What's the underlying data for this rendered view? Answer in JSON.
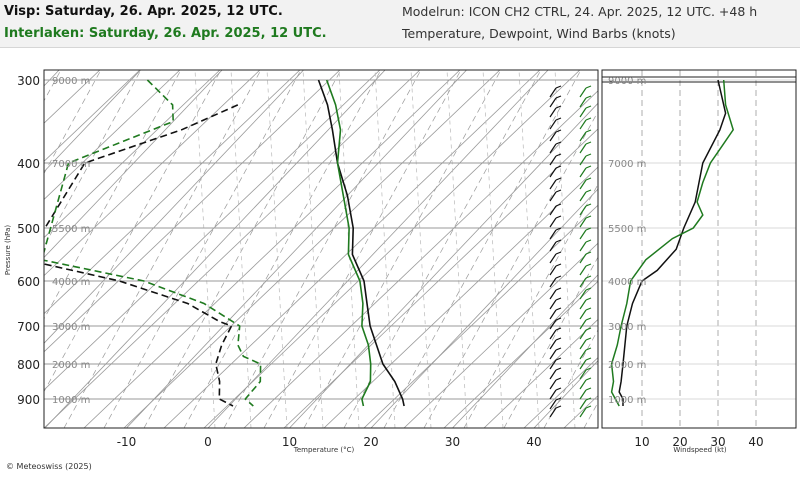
{
  "header": {
    "title_primary": "Visp: Saturday, 26. Apr. 2025, 12 UTC.",
    "title_secondary": "Interlaken: Saturday, 26. Apr. 2025, 12 UTC.",
    "model_run": "Modelrun: ICON CH2 CTRL, 24. Apr. 2025, 12 UTC. +48 h",
    "description": "Temperature, Dewpoint, Wind Barbs (knots)"
  },
  "footer": {
    "copyright": "© Meteoswiss (2025)"
  },
  "colors": {
    "primary": "#111111",
    "secondary": "#1f7a1f",
    "grid": "#9a9a9a",
    "header_bg": "#f2f2f2"
  },
  "chart_data": [
    {
      "type": "line",
      "subtype": "skew-t",
      "xlabel": "Temperature (°C)",
      "ylabel": "Pressure (hPa)",
      "xticks": [
        -10,
        0,
        10,
        20,
        30,
        40
      ],
      "yticks": [
        300,
        400,
        500,
        600,
        700,
        800,
        900
      ],
      "height_labels": [
        "9000 m",
        "7000 m",
        "5500 m",
        "4000 m",
        "3000 m",
        "2000 m",
        "1000 m"
      ],
      "series": [
        {
          "name": "Visp: Saturday, 26. Apr. 2025, 12 UTC.",
          "color": "#111111",
          "temperature": [
            [
              300,
              -27
            ],
            [
              330,
              -23
            ],
            [
              360,
              -19.5
            ],
            [
              400,
              -15
            ],
            [
              450,
              -10
            ],
            [
              500,
              -5.5
            ],
            [
              550,
              -2.5
            ],
            [
              600,
              2
            ],
            [
              650,
              5
            ],
            [
              700,
              8
            ],
            [
              750,
              11
            ],
            [
              800,
              14
            ],
            [
              850,
              17.5
            ],
            [
              900,
              20.5
            ],
            [
              920,
              21.5
            ]
          ],
          "dewpoint": [
            [
              330,
              -34
            ],
            [
              360,
              -38
            ],
            [
              400,
              -46
            ],
            [
              560,
              -42
            ],
            [
              600,
              -28
            ],
            [
              650,
              -17
            ],
            [
              690,
              -11
            ],
            [
              700,
              -9
            ],
            [
              750,
              -8
            ],
            [
              800,
              -6.5
            ],
            [
              850,
              -4
            ],
            [
              900,
              -2
            ],
            [
              920,
              0.5
            ]
          ]
        },
        {
          "name": "Interlaken: Saturday, 26. Apr. 2025, 12 UTC.",
          "color": "#1f7a1f",
          "temperature": [
            [
              300,
              -26
            ],
            [
              330,
              -22
            ],
            [
              360,
              -18.5
            ],
            [
              400,
              -15
            ],
            [
              450,
              -10.5
            ],
            [
              500,
              -6
            ],
            [
              550,
              -3
            ],
            [
              600,
              1.5
            ],
            [
              650,
              4.5
            ],
            [
              700,
              7
            ],
            [
              750,
              10
            ],
            [
              800,
              12.5
            ],
            [
              850,
              14.5
            ],
            [
              900,
              15.5
            ],
            [
              920,
              16.5
            ]
          ],
          "dewpoint": [
            [
              300,
              -48
            ],
            [
              330,
              -42
            ],
            [
              350,
              -40
            ],
            [
              400,
              -48
            ],
            [
              560,
              -40
            ],
            [
              600,
              -25
            ],
            [
              650,
              -15
            ],
            [
              700,
              -8
            ],
            [
              750,
              -6
            ],
            [
              780,
              -4
            ],
            [
              800,
              -1
            ],
            [
              850,
              1
            ],
            [
              900,
              1.2
            ],
            [
              920,
              3
            ]
          ]
        }
      ]
    },
    {
      "type": "line",
      "title": "",
      "xlabel": "Windspeed (kt)",
      "xticks": [
        10,
        20,
        30,
        40
      ],
      "yticks": [
        300,
        400,
        500,
        600,
        700,
        800,
        900
      ],
      "height_labels": [
        "9000 m",
        "7000 m",
        "5500 m",
        "4000 m",
        "3000 m",
        "2000 m",
        "1000 m"
      ],
      "series": [
        {
          "name": "Visp: Saturday, 26. Apr. 2025, 12 UTC.",
          "color": "#111111",
          "points": [
            [
              300,
              30
            ],
            [
              320,
              31
            ],
            [
              340,
              32
            ],
            [
              360,
              30.5
            ],
            [
              400,
              26
            ],
            [
              430,
              25
            ],
            [
              460,
              24
            ],
            [
              500,
              21
            ],
            [
              540,
              19
            ],
            [
              580,
              14
            ],
            [
              600,
              10
            ],
            [
              650,
              7.5
            ],
            [
              700,
              6
            ],
            [
              750,
              5.5
            ],
            [
              800,
              5
            ],
            [
              850,
              4.5
            ],
            [
              880,
              4
            ],
            [
              900,
              5
            ],
            [
              920,
              5
            ]
          ]
        },
        {
          "name": "Interlaken: Saturday, 26. Apr. 2025, 12 UTC.",
          "color": "#1f7a1f",
          "points": [
            [
              300,
              31.5
            ],
            [
              330,
              32
            ],
            [
              360,
              34
            ],
            [
              380,
              31
            ],
            [
              400,
              28
            ],
            [
              430,
              26
            ],
            [
              460,
              24.5
            ],
            [
              480,
              26
            ],
            [
              500,
              23.5
            ],
            [
              520,
              18
            ],
            [
              560,
              11
            ],
            [
              600,
              7
            ],
            [
              650,
              6
            ],
            [
              700,
              4.5
            ],
            [
              750,
              3.5
            ],
            [
              800,
              2
            ],
            [
              850,
              2.5
            ],
            [
              880,
              2
            ],
            [
              900,
              3
            ],
            [
              920,
              4
            ]
          ]
        }
      ]
    }
  ]
}
